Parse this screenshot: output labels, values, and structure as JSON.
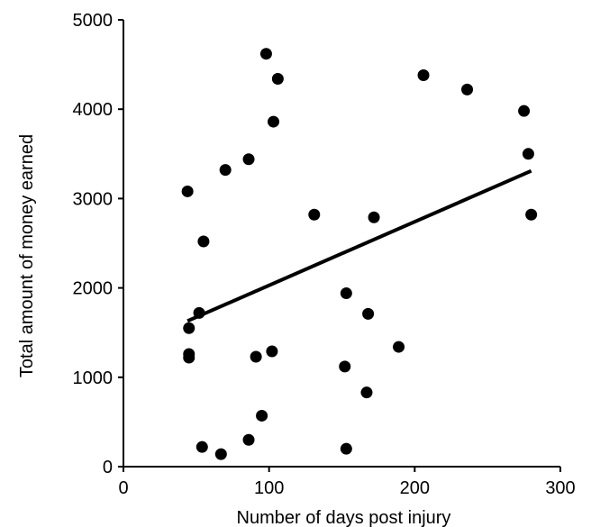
{
  "chart_data": {
    "type": "scatter",
    "title": "",
    "xlabel": "Number of days post injury",
    "ylabel": "Total amount of money earned",
    "xlim": [
      0,
      300
    ],
    "ylim": [
      0,
      5000
    ],
    "x_ticks": [
      0,
      100,
      200,
      300
    ],
    "y_ticks": [
      0,
      1000,
      2000,
      3000,
      4000,
      5000
    ],
    "x_tick_labels": [
      "0",
      "100",
      "200",
      "300"
    ],
    "y_tick_labels": [
      "0",
      "1000",
      "2000",
      "3000",
      "4000",
      "5000"
    ],
    "grid": false,
    "legend": "none",
    "colors": {
      "points": "#000000",
      "trendline": "#000000",
      "axes": "#000000"
    },
    "points": [
      {
        "x": 44,
        "y": 3080
      },
      {
        "x": 45,
        "y": 1220
      },
      {
        "x": 45,
        "y": 1260
      },
      {
        "x": 45,
        "y": 1550
      },
      {
        "x": 52,
        "y": 1720
      },
      {
        "x": 54,
        "y": 220
      },
      {
        "x": 55,
        "y": 2520
      },
      {
        "x": 67,
        "y": 140
      },
      {
        "x": 70,
        "y": 3320
      },
      {
        "x": 86,
        "y": 3440
      },
      {
        "x": 86,
        "y": 300
      },
      {
        "x": 91,
        "y": 1230
      },
      {
        "x": 95,
        "y": 570
      },
      {
        "x": 98,
        "y": 4620
      },
      {
        "x": 102,
        "y": 1290
      },
      {
        "x": 103,
        "y": 3860
      },
      {
        "x": 106,
        "y": 4340
      },
      {
        "x": 131,
        "y": 2820
      },
      {
        "x": 152,
        "y": 1120
      },
      {
        "x": 153,
        "y": 1940
      },
      {
        "x": 153,
        "y": 200
      },
      {
        "x": 167,
        "y": 830
      },
      {
        "x": 168,
        "y": 1710
      },
      {
        "x": 172,
        "y": 2790
      },
      {
        "x": 189,
        "y": 1340
      },
      {
        "x": 206,
        "y": 4380
      },
      {
        "x": 236,
        "y": 4220
      },
      {
        "x": 275,
        "y": 3980
      },
      {
        "x": 278,
        "y": 3500
      },
      {
        "x": 280,
        "y": 2820
      }
    ],
    "trendline": {
      "type": "linear",
      "x": [
        44,
        280
      ],
      "y": [
        1630,
        3310
      ]
    }
  }
}
